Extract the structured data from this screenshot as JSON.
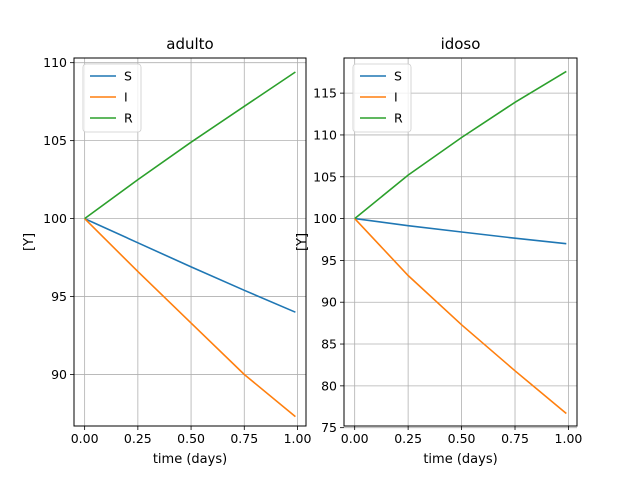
{
  "colors": {
    "S": "#1f77b4",
    "I": "#ff7f0e",
    "R": "#2ca02c",
    "grid": "#b0b0b0",
    "frame": "#000000"
  },
  "chart_data": [
    {
      "type": "line",
      "title": "adulto",
      "xlabel": "time (days)",
      "ylabel": "[Y]",
      "xlim": [
        -0.05,
        1.04
      ],
      "ylim": [
        86.7,
        110.3
      ],
      "xticks": [
        0,
        0.25,
        0.5,
        0.75,
        1
      ],
      "xtick_labels": [
        "0.00",
        "0.25",
        "0.50",
        "0.75",
        "1.00"
      ],
      "yticks": [
        90,
        95,
        100,
        105,
        110
      ],
      "ytick_labels": [
        "90",
        "95",
        "100",
        "105",
        "110"
      ],
      "grid": true,
      "legend": "top-left",
      "series": [
        {
          "name": "S",
          "x": [
            0,
            0.25,
            0.5,
            0.75,
            0.99
          ],
          "y": [
            100,
            98.45,
            96.9,
            95.4,
            94.0
          ]
        },
        {
          "name": "I",
          "x": [
            0,
            0.25,
            0.5,
            0.75,
            0.99
          ],
          "y": [
            100,
            96.6,
            93.3,
            90.0,
            87.3
          ]
        },
        {
          "name": "R",
          "x": [
            0,
            0.25,
            0.5,
            0.75,
            0.99
          ],
          "y": [
            100,
            102.5,
            104.9,
            107.2,
            109.4
          ]
        }
      ]
    },
    {
      "type": "line",
      "title": "idoso",
      "xlabel": "time (days)",
      "ylabel": "[Y]",
      "xlim": [
        -0.05,
        1.04
      ],
      "ylim": [
        75.2,
        119.2
      ],
      "xticks": [
        0,
        0.25,
        0.5,
        0.75,
        1
      ],
      "xtick_labels": [
        "0.00",
        "0.25",
        "0.50",
        "0.75",
        "1.00"
      ],
      "yticks": [
        75,
        80,
        85,
        90,
        95,
        100,
        105,
        110,
        115
      ],
      "ytick_labels": [
        "75",
        "80",
        "85",
        "90",
        "95",
        "100",
        "105",
        "110",
        "115"
      ],
      "grid": true,
      "legend": "top-left",
      "series": [
        {
          "name": "S",
          "x": [
            0,
            0.25,
            0.5,
            0.75,
            0.99
          ],
          "y": [
            100,
            99.15,
            98.4,
            97.65,
            97.0
          ]
        },
        {
          "name": "I",
          "x": [
            0,
            0.25,
            0.5,
            0.75,
            0.99
          ],
          "y": [
            100,
            93.2,
            87.3,
            81.8,
            76.7
          ]
        },
        {
          "name": "R",
          "x": [
            0,
            0.25,
            0.5,
            0.75,
            0.99
          ],
          "y": [
            100,
            105.2,
            109.7,
            113.9,
            117.6
          ]
        }
      ]
    }
  ]
}
